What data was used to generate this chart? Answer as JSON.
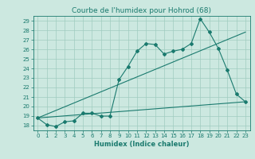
{
  "title": "Courbe de l'humidex pour Hohrod (68)",
  "xlabel": "Humidex (Indice chaleur)",
  "bg_color": "#cce8e0",
  "line_color": "#1a7a6e",
  "xlim": [
    -0.5,
    23.5
  ],
  "ylim": [
    17.5,
    29.5
  ],
  "xticks": [
    0,
    1,
    2,
    3,
    4,
    5,
    6,
    7,
    8,
    9,
    10,
    11,
    12,
    13,
    14,
    15,
    16,
    17,
    18,
    19,
    20,
    21,
    22,
    23
  ],
  "yticks": [
    18,
    19,
    20,
    21,
    22,
    23,
    24,
    25,
    26,
    27,
    28,
    29
  ],
  "series1_x": [
    0,
    1,
    2,
    3,
    4,
    5,
    6,
    7,
    8,
    9,
    10,
    11,
    12,
    13,
    14,
    15,
    16,
    17,
    18,
    19,
    20,
    21,
    22,
    23
  ],
  "series1_y": [
    18.8,
    18.1,
    17.9,
    18.4,
    18.5,
    19.3,
    19.3,
    19.0,
    19.0,
    22.8,
    24.2,
    25.8,
    26.6,
    26.5,
    25.5,
    25.8,
    26.0,
    26.6,
    29.2,
    27.8,
    26.1,
    23.8,
    21.3,
    20.5
  ],
  "trend1_x": [
    0,
    23
  ],
  "trend1_y": [
    18.8,
    27.8
  ],
  "trend2_x": [
    0,
    23
  ],
  "trend2_y": [
    18.8,
    20.5
  ],
  "grid_color": "#a0ccbf",
  "title_fontsize": 6.5,
  "xlabel_fontsize": 6,
  "tick_fontsize": 5
}
